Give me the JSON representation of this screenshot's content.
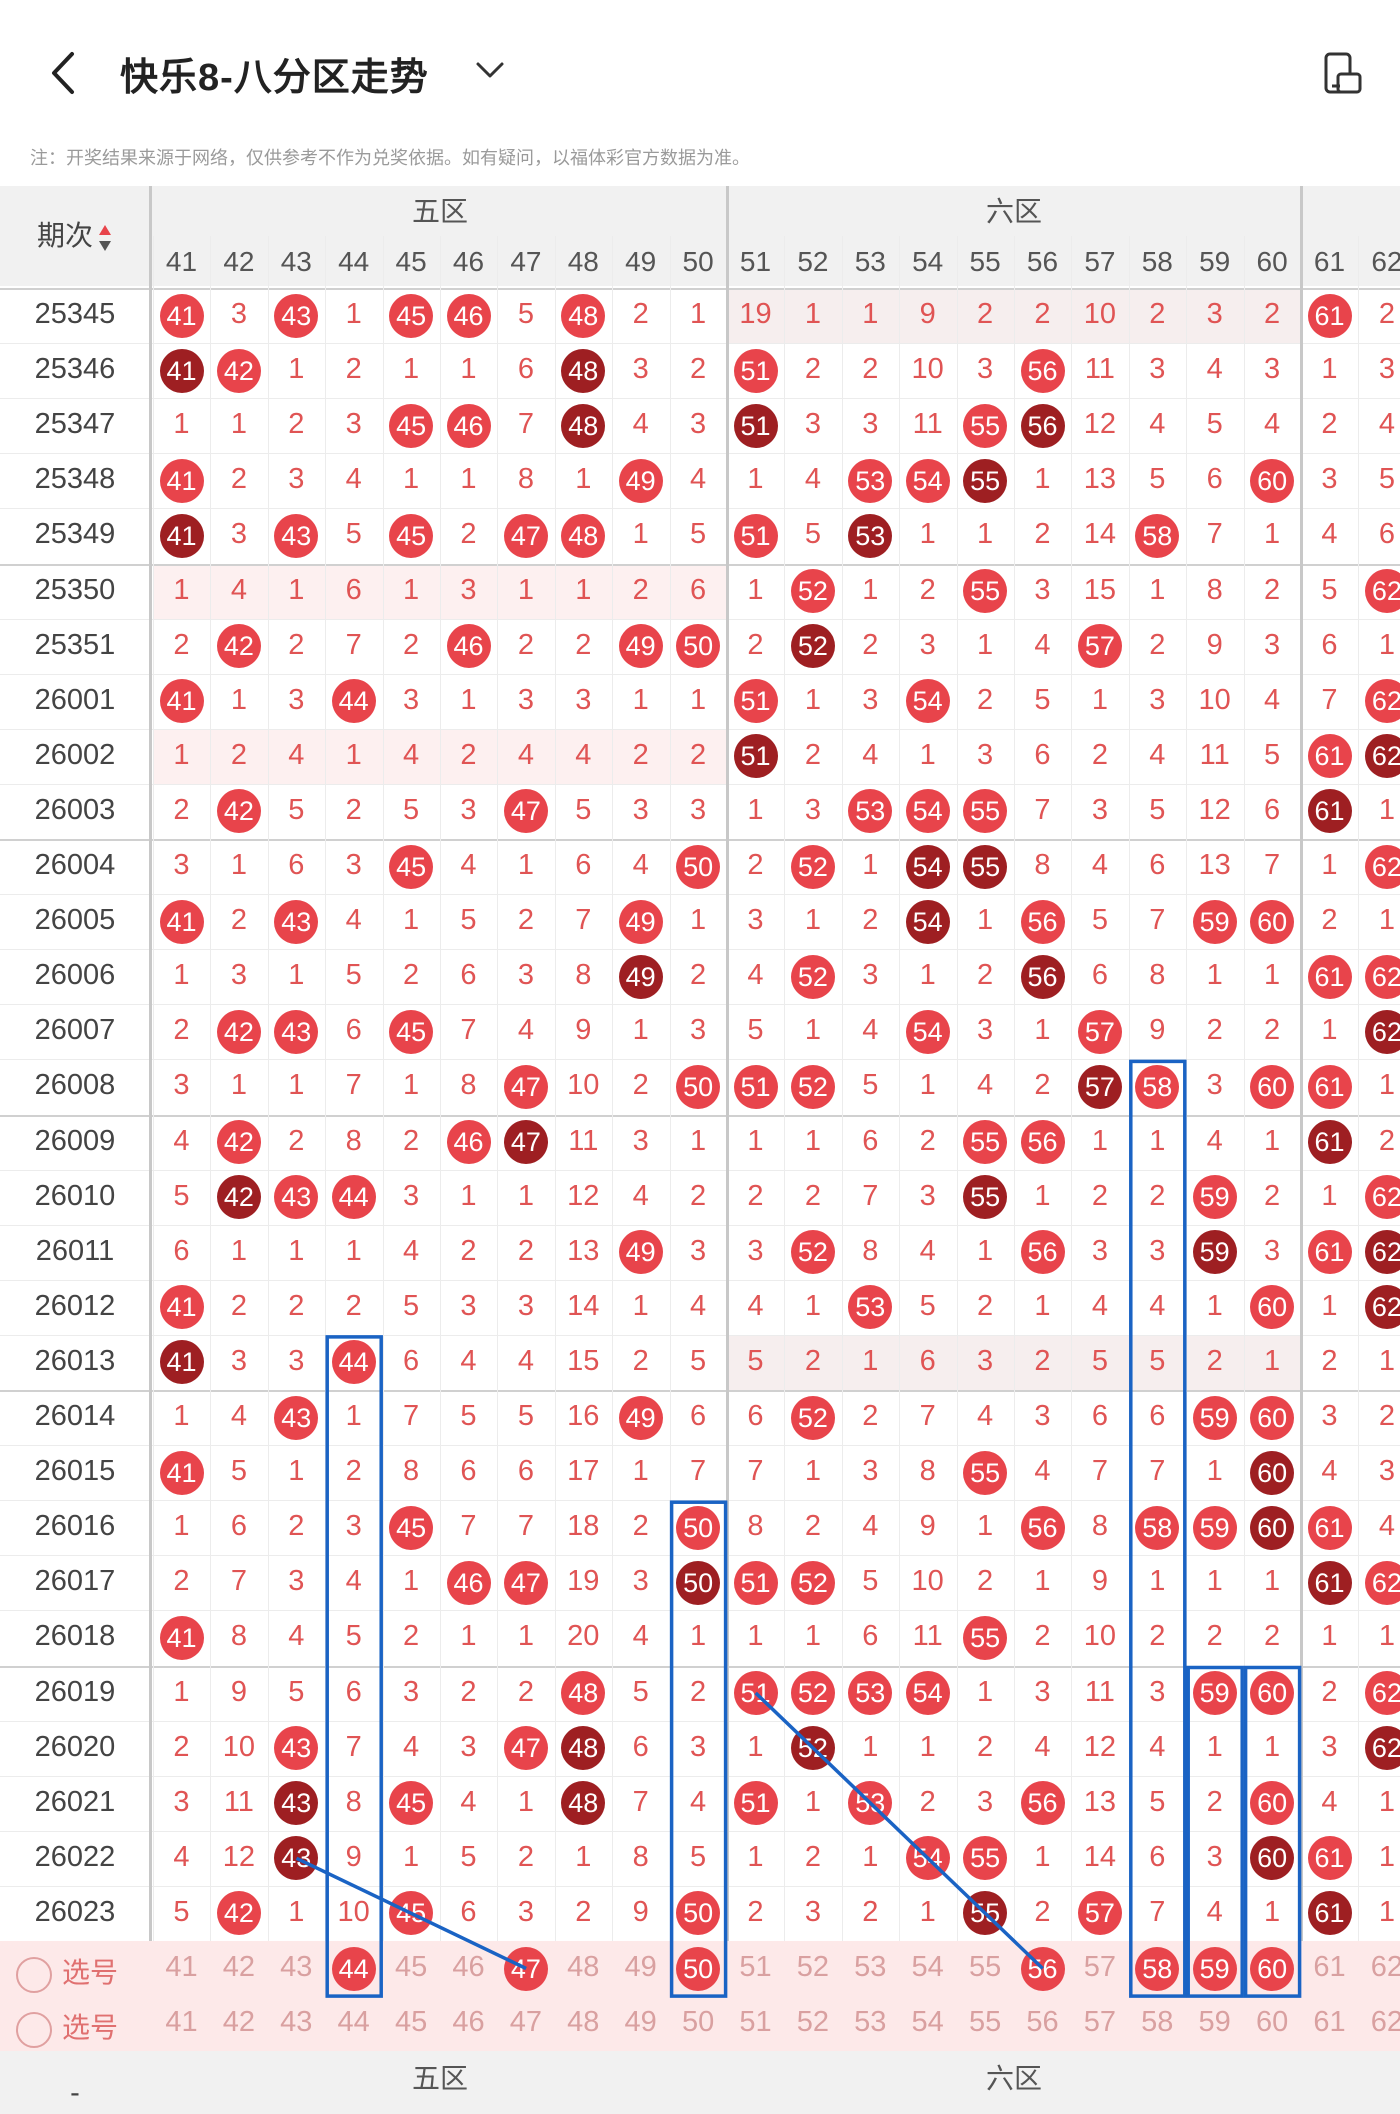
{
  "header": {
    "title": "快乐8-八分区走势",
    "back_icon": "chevron-left-icon",
    "dropdown_icon": "chevron-down-icon",
    "rotate_icon": "screen-rotate-icon"
  },
  "notice": "注：开奖结果来源于网络，仅供参考不作为兑奖依据。如有疑问，以福体彩官方数据为准。",
  "table": {
    "period_header": "期次",
    "sort_icon": "sort-updown-icon",
    "zones": [
      "五区",
      "六区"
    ],
    "columns": [
      "41",
      "42",
      "43",
      "44",
      "45",
      "46",
      "47",
      "48",
      "49",
      "50",
      "51",
      "52",
      "53",
      "54",
      "55",
      "56",
      "57",
      "58",
      "59",
      "60",
      "61",
      "62"
    ],
    "periods": [
      "25345",
      "25346",
      "25347",
      "25348",
      "25349",
      "25350",
      "25351",
      "26001",
      "26002",
      "26003",
      "26004",
      "26005",
      "26006",
      "26007",
      "26008",
      "26009",
      "26010",
      "26011",
      "26012",
      "26013",
      "26014",
      "26015",
      "26016",
      "26017",
      "26018",
      "26019",
      "26020",
      "26021",
      "26022",
      "26023"
    ],
    "rows": [
      [
        "41",
        "3",
        "43",
        "1",
        "45",
        "46",
        "5",
        "48",
        "2",
        "1",
        "19",
        "1",
        "1",
        "9",
        "2",
        "2",
        "10",
        "2",
        "3",
        "2",
        "61",
        "2"
      ],
      [
        "41",
        "42",
        "1",
        "2",
        "1",
        "1",
        "6",
        "48",
        "3",
        "2",
        "51",
        "2",
        "2",
        "10",
        "3",
        "56",
        "11",
        "3",
        "4",
        "3",
        "1",
        "3"
      ],
      [
        "1",
        "1",
        "2",
        "3",
        "45",
        "46",
        "7",
        "48",
        "4",
        "3",
        "51",
        "3",
        "3",
        "11",
        "55",
        "56",
        "12",
        "4",
        "5",
        "4",
        "2",
        "4"
      ],
      [
        "41",
        "2",
        "3",
        "4",
        "1",
        "1",
        "8",
        "1",
        "49",
        "4",
        "1",
        "4",
        "53",
        "54",
        "55",
        "1",
        "13",
        "5",
        "6",
        "60",
        "3",
        "5"
      ],
      [
        "41",
        "3",
        "43",
        "5",
        "45",
        "2",
        "47",
        "48",
        "1",
        "5",
        "51",
        "5",
        "53",
        "1",
        "1",
        "2",
        "14",
        "58",
        "7",
        "1",
        "4",
        "6"
      ],
      [
        "1",
        "4",
        "1",
        "6",
        "1",
        "3",
        "1",
        "1",
        "2",
        "6",
        "1",
        "52",
        "1",
        "2",
        "55",
        "3",
        "15",
        "1",
        "8",
        "2",
        "5",
        "62"
      ],
      [
        "2",
        "42",
        "2",
        "7",
        "2",
        "46",
        "2",
        "2",
        "49",
        "50",
        "2",
        "52",
        "2",
        "3",
        "1",
        "4",
        "57",
        "2",
        "9",
        "3",
        "6",
        "1"
      ],
      [
        "41",
        "1",
        "3",
        "44",
        "3",
        "1",
        "3",
        "3",
        "1",
        "1",
        "51",
        "1",
        "3",
        "54",
        "2",
        "5",
        "1",
        "3",
        "10",
        "4",
        "7",
        "62"
      ],
      [
        "1",
        "2",
        "4",
        "1",
        "4",
        "2",
        "4",
        "4",
        "2",
        "2",
        "51",
        "2",
        "4",
        "1",
        "3",
        "6",
        "2",
        "4",
        "11",
        "5",
        "61",
        "62"
      ],
      [
        "2",
        "42",
        "5",
        "2",
        "5",
        "3",
        "47",
        "5",
        "3",
        "3",
        "1",
        "3",
        "53",
        "54",
        "55",
        "7",
        "3",
        "5",
        "12",
        "6",
        "61",
        "1"
      ],
      [
        "3",
        "1",
        "6",
        "3",
        "45",
        "4",
        "1",
        "6",
        "4",
        "50",
        "2",
        "52",
        "1",
        "54",
        "55",
        "8",
        "4",
        "6",
        "13",
        "7",
        "1",
        "62"
      ],
      [
        "41",
        "2",
        "43",
        "4",
        "1",
        "5",
        "2",
        "7",
        "49",
        "1",
        "3",
        "1",
        "2",
        "54",
        "1",
        "56",
        "5",
        "7",
        "59",
        "60",
        "2",
        "1"
      ],
      [
        "1",
        "3",
        "1",
        "5",
        "2",
        "6",
        "3",
        "8",
        "49",
        "2",
        "4",
        "52",
        "3",
        "1",
        "2",
        "56",
        "6",
        "8",
        "1",
        "1",
        "61",
        "62"
      ],
      [
        "2",
        "42",
        "43",
        "6",
        "45",
        "7",
        "4",
        "9",
        "1",
        "3",
        "5",
        "1",
        "4",
        "54",
        "3",
        "1",
        "57",
        "9",
        "2",
        "2",
        "1",
        "62"
      ],
      [
        "3",
        "1",
        "1",
        "7",
        "1",
        "8",
        "47",
        "10",
        "2",
        "50",
        "51",
        "52",
        "5",
        "1",
        "4",
        "2",
        "57",
        "58",
        "3",
        "60",
        "61",
        "1"
      ],
      [
        "4",
        "42",
        "2",
        "8",
        "2",
        "46",
        "47",
        "11",
        "3",
        "1",
        "1",
        "1",
        "6",
        "2",
        "55",
        "56",
        "1",
        "1",
        "4",
        "1",
        "61",
        "2"
      ],
      [
        "5",
        "42",
        "43",
        "44",
        "3",
        "1",
        "1",
        "12",
        "4",
        "2",
        "2",
        "2",
        "7",
        "3",
        "55",
        "1",
        "2",
        "2",
        "59",
        "2",
        "1",
        "62"
      ],
      [
        "6",
        "1",
        "1",
        "1",
        "4",
        "2",
        "2",
        "13",
        "49",
        "3",
        "3",
        "52",
        "8",
        "4",
        "1",
        "56",
        "3",
        "3",
        "59",
        "3",
        "61",
        "62"
      ],
      [
        "41",
        "2",
        "2",
        "2",
        "5",
        "3",
        "3",
        "14",
        "1",
        "4",
        "4",
        "1",
        "53",
        "5",
        "2",
        "1",
        "4",
        "4",
        "1",
        "60",
        "1",
        "62"
      ],
      [
        "41",
        "3",
        "3",
        "44",
        "6",
        "4",
        "4",
        "15",
        "2",
        "5",
        "5",
        "2",
        "1",
        "6",
        "3",
        "2",
        "5",
        "5",
        "2",
        "1",
        "2",
        "1"
      ],
      [
        "1",
        "4",
        "43",
        "1",
        "7",
        "5",
        "5",
        "16",
        "49",
        "6",
        "6",
        "52",
        "2",
        "7",
        "4",
        "3",
        "6",
        "6",
        "59",
        "60",
        "3",
        "2"
      ],
      [
        "41",
        "5",
        "1",
        "2",
        "8",
        "6",
        "6",
        "17",
        "1",
        "7",
        "7",
        "1",
        "3",
        "8",
        "55",
        "4",
        "7",
        "7",
        "1",
        "60",
        "4",
        "3"
      ],
      [
        "1",
        "6",
        "2",
        "3",
        "45",
        "7",
        "7",
        "18",
        "2",
        "50",
        "8",
        "2",
        "4",
        "9",
        "1",
        "56",
        "8",
        "58",
        "59",
        "60",
        "61",
        "4"
      ],
      [
        "2",
        "7",
        "3",
        "4",
        "1",
        "46",
        "47",
        "19",
        "3",
        "50",
        "51",
        "52",
        "5",
        "10",
        "2",
        "1",
        "9",
        "1",
        "1",
        "1",
        "61",
        "62"
      ],
      [
        "41",
        "8",
        "4",
        "5",
        "2",
        "1",
        "1",
        "20",
        "4",
        "1",
        "1",
        "1",
        "6",
        "11",
        "55",
        "2",
        "10",
        "2",
        "2",
        "2",
        "1",
        "1"
      ],
      [
        "1",
        "9",
        "5",
        "6",
        "3",
        "2",
        "2",
        "48",
        "5",
        "2",
        "51",
        "52",
        "53",
        "54",
        "1",
        "3",
        "11",
        "3",
        "59",
        "60",
        "2",
        "62"
      ],
      [
        "2",
        "10",
        "43",
        "7",
        "4",
        "3",
        "47",
        "48",
        "6",
        "3",
        "1",
        "52",
        "1",
        "1",
        "2",
        "4",
        "12",
        "4",
        "1",
        "1",
        "3",
        "62"
      ],
      [
        "3",
        "11",
        "43",
        "8",
        "45",
        "4",
        "1",
        "48",
        "7",
        "4",
        "51",
        "1",
        "53",
        "2",
        "3",
        "56",
        "13",
        "5",
        "2",
        "60",
        "4",
        "1"
      ],
      [
        "4",
        "12",
        "43",
        "9",
        "1",
        "5",
        "2",
        "1",
        "8",
        "5",
        "1",
        "2",
        "1",
        "54",
        "55",
        "1",
        "14",
        "6",
        "3",
        "60",
        "61",
        "1"
      ],
      [
        "5",
        "42",
        "1",
        "10",
        "45",
        "6",
        "3",
        "2",
        "9",
        "50",
        "2",
        "3",
        "2",
        "1",
        "55",
        "2",
        "57",
        "7",
        "4",
        "1",
        "61",
        "1"
      ]
    ],
    "select_rows": [
      {
        "label": "选号",
        "values": [
          "41",
          "42",
          "43",
          "44",
          "45",
          "46",
          "47",
          "48",
          "49",
          "50",
          "51",
          "52",
          "53",
          "54",
          "55",
          "56",
          "57",
          "58",
          "59",
          "60",
          "61",
          "62"
        ]
      },
      {
        "label": "选号",
        "values": [
          "41",
          "42",
          "43",
          "44",
          "45",
          "46",
          "47",
          "48",
          "49",
          "50",
          "51",
          "52",
          "53",
          "54",
          "55",
          "56",
          "57",
          "58",
          "59",
          "60",
          "61",
          "62"
        ]
      }
    ],
    "footer_dash": "-",
    "footer_zones": [
      "五区",
      "六区"
    ]
  },
  "colors": {
    "ball_red": "#e8444b",
    "ball_dark": "#9e1f22",
    "text_red": "#e05454",
    "highlight_box": "#1a63c4",
    "selected_row_bg": "#fde9e9"
  }
}
